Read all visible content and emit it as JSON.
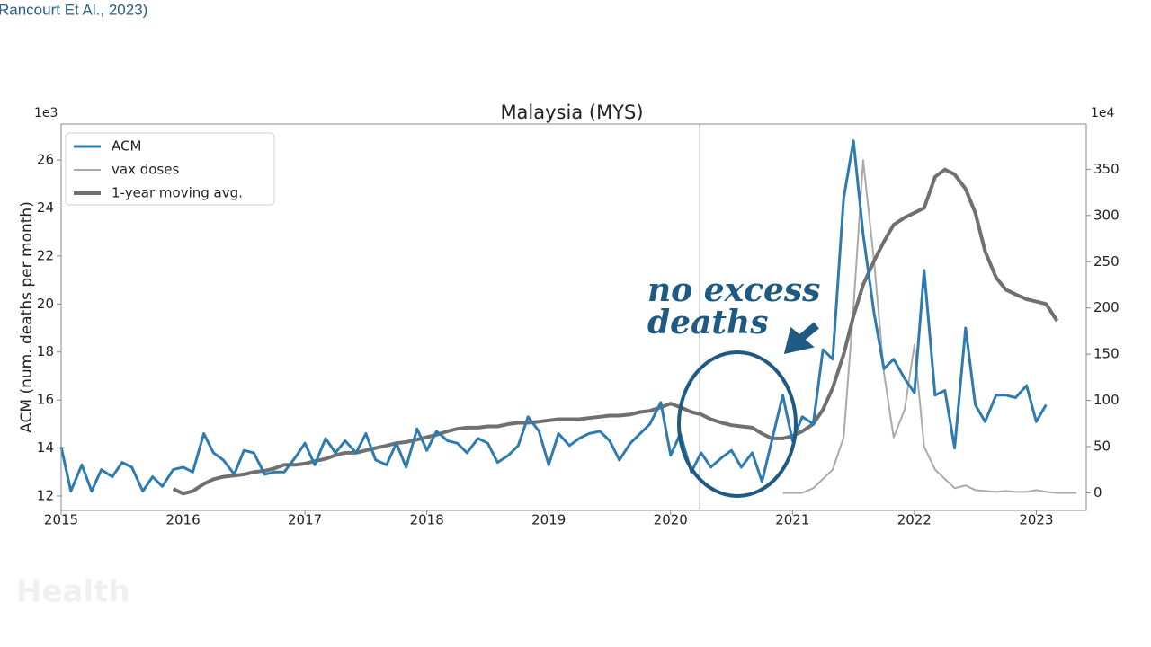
{
  "source": "Rancourt Et Al., 2023)",
  "watermark": "Health",
  "chart_data": {
    "type": "line",
    "title": "Malaysia (MYS)",
    "ylabel": "ACM (num. deaths per month)",
    "y_offset_label": "1e3",
    "y2_offset_label": "1e4",
    "annotation": "no excess deaths",
    "vline": 2020.24,
    "legend": "upper left",
    "xlim": [
      2015.0,
      2023.41
    ],
    "xticks": [
      2015,
      2016,
      2017,
      2018,
      2019,
      2020,
      2021,
      2022,
      2023
    ],
    "ylim": [
      11.4,
      27.5
    ],
    "yticks": [
      12,
      14,
      16,
      18,
      20,
      22,
      24,
      26
    ],
    "y2lim": [
      -19,
      399
    ],
    "y2ticks": [
      0,
      50,
      100,
      150,
      200,
      250,
      300,
      350
    ],
    "series": [
      {
        "name": "ACM",
        "color": "#2e7bb0",
        "width": 3,
        "axis": "y",
        "x": [
          2015.0,
          2015.08,
          2015.17,
          2015.25,
          2015.33,
          2015.42,
          2015.5,
          2015.58,
          2015.67,
          2015.75,
          2015.83,
          2015.92,
          2016.0,
          2016.08,
          2016.17,
          2016.25,
          2016.33,
          2016.42,
          2016.5,
          2016.58,
          2016.67,
          2016.75,
          2016.83,
          2016.92,
          2017.0,
          2017.08,
          2017.17,
          2017.25,
          2017.33,
          2017.42,
          2017.5,
          2017.58,
          2017.67,
          2017.75,
          2017.83,
          2017.92,
          2018.0,
          2018.08,
          2018.17,
          2018.25,
          2018.33,
          2018.42,
          2018.5,
          2018.58,
          2018.67,
          2018.75,
          2018.83,
          2018.92,
          2019.0,
          2019.08,
          2019.17,
          2019.25,
          2019.33,
          2019.42,
          2019.5,
          2019.58,
          2019.67,
          2019.75,
          2019.83,
          2019.92,
          2020.0,
          2020.08,
          2020.17,
          2020.25,
          2020.33,
          2020.42,
          2020.5,
          2020.58,
          2020.67,
          2020.75,
          2020.83,
          2020.92,
          2021.0,
          2021.08,
          2021.17,
          2021.25,
          2021.33,
          2021.42,
          2021.5,
          2021.58,
          2021.67,
          2021.75,
          2021.83,
          2021.92,
          2022.0,
          2022.08,
          2022.17,
          2022.25,
          2022.33,
          2022.42,
          2022.5,
          2022.58,
          2022.67,
          2022.75,
          2022.83,
          2022.92,
          2023.0,
          2023.08
        ],
        "values": [
          14.05,
          12.2,
          13.3,
          12.2,
          13.1,
          12.8,
          13.4,
          13.2,
          12.2,
          12.8,
          12.4,
          13.1,
          13.2,
          13.0,
          14.6,
          13.8,
          13.5,
          12.9,
          13.9,
          13.8,
          12.9,
          13.0,
          13.0,
          13.6,
          14.2,
          13.3,
          14.4,
          13.8,
          14.3,
          13.8,
          14.6,
          13.5,
          13.3,
          14.2,
          13.2,
          14.8,
          13.9,
          14.7,
          14.3,
          14.2,
          13.8,
          14.4,
          14.2,
          13.4,
          13.7,
          14.1,
          15.3,
          14.7,
          13.3,
          14.6,
          14.1,
          14.4,
          14.6,
          14.7,
          14.3,
          13.5,
          14.2,
          14.6,
          15.0,
          15.9,
          13.7,
          14.6,
          13.0,
          13.8,
          13.2,
          13.6,
          13.9,
          13.2,
          13.8,
          12.6,
          14.3,
          16.2,
          14.3,
          15.3,
          15.0,
          18.1,
          17.7,
          24.4,
          26.8,
          22.9,
          19.6,
          17.3,
          17.7,
          16.9,
          16.3,
          21.4,
          16.2,
          16.4,
          14.0,
          19.0,
          15.8,
          15.1,
          16.2,
          16.2,
          16.1,
          16.6,
          15.1,
          15.8
        ]
      },
      {
        "name": "vax doses",
        "color": "#aaaaaa",
        "width": 2,
        "axis": "y2",
        "x": [
          2020.92,
          2021.0,
          2021.08,
          2021.17,
          2021.25,
          2021.33,
          2021.42,
          2021.5,
          2021.58,
          2021.67,
          2021.75,
          2021.83,
          2021.92,
          2022.0,
          2022.08,
          2022.17,
          2022.25,
          2022.33,
          2022.42,
          2022.5,
          2022.58,
          2022.67,
          2022.75,
          2022.83,
          2022.92,
          2023.0,
          2023.08,
          2023.17,
          2023.25,
          2023.33
        ],
        "values": [
          0,
          0,
          0,
          5,
          15,
          25,
          60,
          200,
          360,
          250,
          130,
          60,
          90,
          160,
          50,
          25,
          15,
          5,
          8,
          3,
          2,
          1,
          2,
          1,
          1,
          3,
          1,
          0,
          0,
          0
        ]
      },
      {
        "name": "1-year moving avg.",
        "color": "#707070",
        "width": 4,
        "axis": "y",
        "x": [
          2015.92,
          2016.0,
          2016.08,
          2016.17,
          2016.25,
          2016.33,
          2016.42,
          2016.5,
          2016.58,
          2016.67,
          2016.75,
          2016.83,
          2016.92,
          2017.0,
          2017.08,
          2017.17,
          2017.25,
          2017.33,
          2017.42,
          2017.5,
          2017.58,
          2017.67,
          2017.75,
          2017.83,
          2017.92,
          2018.0,
          2018.08,
          2018.17,
          2018.25,
          2018.33,
          2018.42,
          2018.5,
          2018.58,
          2018.67,
          2018.75,
          2018.83,
          2018.92,
          2019.0,
          2019.08,
          2019.17,
          2019.25,
          2019.33,
          2019.42,
          2019.5,
          2019.58,
          2019.67,
          2019.75,
          2019.83,
          2019.92,
          2020.0,
          2020.08,
          2020.17,
          2020.25,
          2020.33,
          2020.42,
          2020.5,
          2020.58,
          2020.67,
          2020.75,
          2020.83,
          2020.92,
          2021.0,
          2021.08,
          2021.17,
          2021.25,
          2021.33,
          2021.42,
          2021.5,
          2021.58,
          2021.67,
          2021.75,
          2021.83,
          2021.92,
          2022.0,
          2022.08,
          2022.17,
          2022.25,
          2022.33,
          2022.42,
          2022.5,
          2022.58,
          2022.67,
          2022.75,
          2022.83,
          2022.92,
          2023.0,
          2023.08,
          2023.17
        ],
        "values": [
          12.3,
          12.1,
          12.2,
          12.5,
          12.7,
          12.8,
          12.85,
          12.9,
          13.0,
          13.05,
          13.15,
          13.3,
          13.3,
          13.35,
          13.45,
          13.55,
          13.7,
          13.8,
          13.8,
          13.9,
          14.0,
          14.1,
          14.2,
          14.25,
          14.35,
          14.45,
          14.55,
          14.7,
          14.8,
          14.85,
          14.85,
          14.9,
          14.9,
          15.0,
          15.05,
          15.05,
          15.1,
          15.15,
          15.2,
          15.2,
          15.2,
          15.25,
          15.3,
          15.35,
          15.35,
          15.4,
          15.5,
          15.55,
          15.7,
          15.85,
          15.7,
          15.5,
          15.4,
          15.2,
          15.05,
          14.95,
          14.9,
          14.85,
          14.6,
          14.4,
          14.4,
          14.5,
          14.7,
          15.0,
          15.6,
          16.5,
          17.9,
          19.5,
          20.8,
          21.8,
          22.6,
          23.3,
          23.6,
          23.8,
          24.0,
          25.3,
          25.6,
          25.4,
          24.8,
          23.8,
          22.2,
          21.1,
          20.6,
          20.4,
          20.2,
          20.1,
          20.0,
          19.3
        ]
      }
    ]
  }
}
